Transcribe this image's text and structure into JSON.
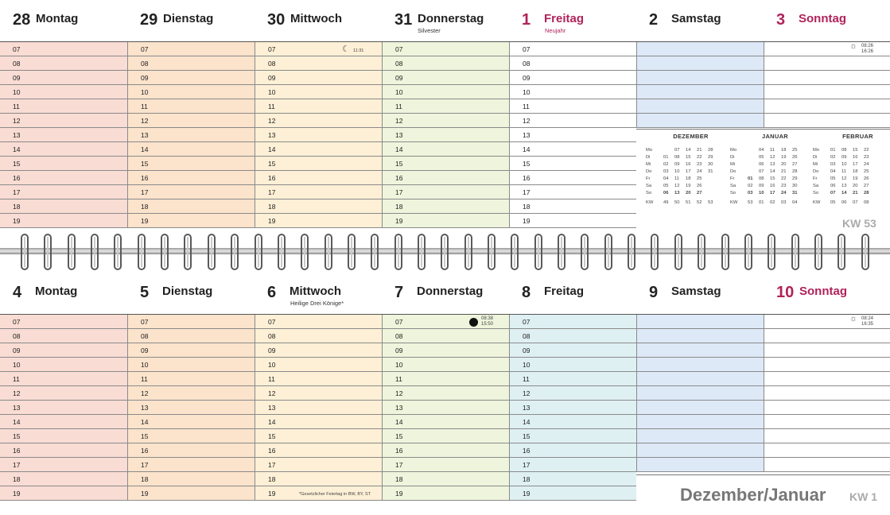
{
  "hours": [
    "07",
    "08",
    "09",
    "10",
    "11",
    "12",
    "13",
    "14",
    "15",
    "16",
    "17",
    "18",
    "19"
  ],
  "week1": {
    "days": [
      {
        "num": "28",
        "name": "Montag",
        "sub": "",
        "holiday": false
      },
      {
        "num": "29",
        "name": "Dienstag",
        "sub": "",
        "holiday": false
      },
      {
        "num": "30",
        "name": "Mittwoch",
        "sub": "",
        "holiday": false
      },
      {
        "num": "31",
        "name": "Donnerstag",
        "sub": "Silvester",
        "holiday": false
      },
      {
        "num": "1",
        "name": "Freitag",
        "sub": "Neujahr",
        "holiday": true
      },
      {
        "num": "2",
        "name": "Samstag",
        "sub": "",
        "holiday": false
      },
      {
        "num": "3",
        "name": "Sonntag",
        "sub": "",
        "holiday": true
      }
    ],
    "moon_time": "11:31",
    "sun_rise": "08:26",
    "sun_set": "16:26",
    "kw": "KW 53"
  },
  "week2": {
    "days": [
      {
        "num": "4",
        "name": "Montag",
        "sub": "",
        "holiday": false
      },
      {
        "num": "5",
        "name": "Dienstag",
        "sub": "",
        "holiday": false
      },
      {
        "num": "6",
        "name": "Mittwoch",
        "sub": "Heilige Drei Könige*",
        "holiday": false
      },
      {
        "num": "7",
        "name": "Donnerstag",
        "sub": "",
        "holiday": false
      },
      {
        "num": "8",
        "name": "Freitag",
        "sub": "",
        "holiday": false
      },
      {
        "num": "9",
        "name": "Samstag",
        "sub": "",
        "holiday": false
      },
      {
        "num": "10",
        "name": "Sonntag",
        "sub": "",
        "holiday": true
      }
    ],
    "fullmoon_rise": "08:38",
    "fullmoon_set": "15:50",
    "sun_rise": "08:24",
    "sun_set": "16:35",
    "footnote": "*Gesetzlicher Feiertag in BW, BY, ST"
  },
  "minical": {
    "months": [
      {
        "title": "DEZEMBER",
        "rows": [
          [
            "Mo",
            "",
            "07",
            "14",
            "21",
            "28"
          ],
          [
            "Di",
            "01",
            "08",
            "15",
            "22",
            "29"
          ],
          [
            "Mi",
            "02",
            "09",
            "16",
            "23",
            "30"
          ],
          [
            "Do",
            "03",
            "10",
            "17",
            "24",
            "31"
          ],
          [
            "Fr",
            "04",
            "11",
            "18",
            "25",
            ""
          ],
          [
            "Sa",
            "05",
            "12",
            "19",
            "26",
            ""
          ],
          [
            "So",
            "06",
            "13",
            "20",
            "27",
            ""
          ]
        ],
        "kw": [
          "KW",
          "49",
          "50",
          "51",
          "52",
          "53"
        ]
      },
      {
        "title": "JANUAR",
        "rows": [
          [
            "Mo",
            "",
            "04",
            "11",
            "18",
            "25"
          ],
          [
            "Di",
            "",
            "05",
            "12",
            "19",
            "26"
          ],
          [
            "Mi",
            "",
            "06",
            "13",
            "20",
            "27"
          ],
          [
            "Do",
            "",
            "07",
            "14",
            "21",
            "28"
          ],
          [
            "Fr",
            "01",
            "08",
            "15",
            "22",
            "29"
          ],
          [
            "Sa",
            "02",
            "09",
            "16",
            "23",
            "30"
          ],
          [
            "So",
            "03",
            "10",
            "17",
            "24",
            "31"
          ]
        ],
        "kw": [
          "KW",
          "53",
          "01",
          "02",
          "03",
          "04"
        ]
      },
      {
        "title": "FEBRUAR",
        "rows": [
          [
            "Mo",
            "01",
            "08",
            "15",
            "22",
            ""
          ],
          [
            "Di",
            "02",
            "09",
            "16",
            "23",
            ""
          ],
          [
            "Mi",
            "03",
            "10",
            "17",
            "24",
            ""
          ],
          [
            "Do",
            "04",
            "11",
            "18",
            "25",
            ""
          ],
          [
            "Fr",
            "05",
            "12",
            "19",
            "26",
            ""
          ],
          [
            "Sa",
            "06",
            "13",
            "20",
            "27",
            ""
          ],
          [
            "So",
            "07",
            "14",
            "21",
            "28",
            ""
          ]
        ],
        "kw": [
          "KW",
          "05",
          "06",
          "07",
          "08",
          ""
        ]
      }
    ]
  },
  "footer": {
    "title": "Dezember/Januar",
    "kw": "KW 1"
  }
}
